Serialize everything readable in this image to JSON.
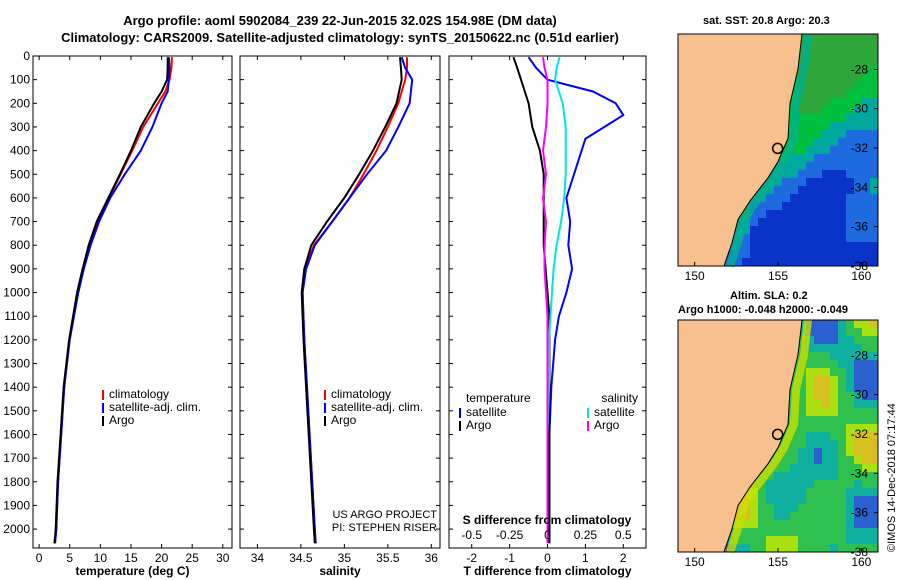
{
  "header": {
    "line1": "Argo profile: aoml 5902084_239 22-Jun-2015 32.02S 154.98E (DM data)",
    "line2": "Climatology: CARS2009. Satellite-adjusted climatology: synTS_20150622.nc (0.51d earlier)"
  },
  "credit": {
    "line1": "US ARGO PROJECT",
    "line2": "PI: STEPHEN RISER"
  },
  "stamp": "©IMOS 14-Dec-2018 07:17:44",
  "colors": {
    "clim": "#ff0000",
    "sat": "#0000ff",
    "argo": "#000000",
    "sat_s": "#00e5e5",
    "argo_s": "#ff00ff"
  },
  "chart_data": [
    {
      "type": "line",
      "id": "temperature",
      "xlabel": "temperature (deg C)",
      "ylabel": "",
      "xlim": [
        -1,
        31.5
      ],
      "ylim": [
        2080,
        0
      ],
      "xticks": [
        "0",
        "5",
        "10",
        "15",
        "20",
        "25",
        "30"
      ],
      "yticks": [
        "0",
        "100",
        "200",
        "300",
        "400",
        "500",
        "600",
        "700",
        "800",
        "900",
        "1000",
        "1100",
        "1200",
        "1300",
        "1400",
        "1500",
        "1600",
        "1700",
        "1800",
        "1900",
        "2000"
      ],
      "legend": [
        "climatology",
        "satellite-adj. clim.",
        "Argo"
      ],
      "series": [
        {
          "name": "climatology",
          "depth": [
            5,
            50,
            100,
            150,
            200,
            300,
            400,
            500,
            600,
            700,
            800,
            900,
            1000,
            1200,
            1400,
            1600,
            1800,
            2000,
            2060
          ],
          "values": [
            21.7,
            21.6,
            21.3,
            20.6,
            19.4,
            17.0,
            15.2,
            13.3,
            11.4,
            9.5,
            8.2,
            7.2,
            6.3,
            5.0,
            4.1,
            3.6,
            3.1,
            2.8,
            2.6
          ]
        },
        {
          "name": "satellite-adj. clim.",
          "depth": [
            5,
            50,
            100,
            150,
            200,
            300,
            400,
            500,
            600,
            700,
            800,
            900,
            1000,
            1200,
            1400,
            1600,
            1800,
            2000,
            2060
          ],
          "values": [
            21.2,
            21.3,
            21.2,
            21.0,
            20.0,
            18.5,
            16.6,
            14.0,
            11.6,
            9.8,
            8.4,
            7.3,
            6.4,
            5.0,
            4.1,
            3.6,
            3.1,
            2.8,
            2.6
          ]
        },
        {
          "name": "Argo",
          "depth": [
            5,
            50,
            100,
            150,
            200,
            300,
            400,
            500,
            600,
            700,
            800,
            900,
            1000,
            1200,
            1400,
            1600,
            1800,
            2000,
            2060
          ],
          "values": [
            21.0,
            21.0,
            20.9,
            20.0,
            18.8,
            16.6,
            15.0,
            13.2,
            11.3,
            9.4,
            8.1,
            7.1,
            6.2,
            4.9,
            4.0,
            3.5,
            3.0,
            2.7,
            2.5
          ]
        }
      ]
    },
    {
      "type": "line",
      "id": "salinity",
      "xlabel": "salinity",
      "xlim": [
        33.8,
        36.1
      ],
      "ylim": [
        2080,
        0
      ],
      "xticks": [
        "34",
        "34.5",
        "35",
        "35.5",
        "36"
      ],
      "legend": [
        "climatology",
        "satellite-adj. clim.",
        "Argo"
      ],
      "series": [
        {
          "name": "climatology",
          "depth": [
            5,
            50,
            100,
            200,
            300,
            400,
            500,
            600,
            700,
            800,
            900,
            1000,
            1200,
            1400,
            1600,
            1800,
            2000,
            2060
          ],
          "values": [
            35.72,
            35.72,
            35.7,
            35.62,
            35.5,
            35.37,
            35.22,
            35.06,
            34.86,
            34.65,
            34.55,
            34.52,
            34.54,
            34.57,
            34.6,
            34.63,
            34.66,
            34.67
          ]
        },
        {
          "name": "satellite-adj. clim.",
          "depth": [
            5,
            50,
            100,
            200,
            300,
            400,
            500,
            600,
            700,
            800,
            900,
            1000,
            1200,
            1400,
            1600,
            1800,
            2000,
            2060
          ],
          "values": [
            35.66,
            35.7,
            35.78,
            35.75,
            35.62,
            35.48,
            35.26,
            35.06,
            34.86,
            34.66,
            34.56,
            34.52,
            34.54,
            34.57,
            34.6,
            34.63,
            34.66,
            34.67
          ]
        },
        {
          "name": "Argo",
          "depth": [
            5,
            50,
            100,
            200,
            300,
            400,
            500,
            600,
            700,
            800,
            900,
            1000,
            1200,
            1400,
            1600,
            1800,
            2000,
            2060
          ],
          "values": [
            35.64,
            35.65,
            35.66,
            35.6,
            35.47,
            35.33,
            35.17,
            35.0,
            34.8,
            34.62,
            34.54,
            34.51,
            34.53,
            34.56,
            34.59,
            34.62,
            34.65,
            34.66
          ]
        }
      ]
    },
    {
      "type": "line",
      "id": "difference",
      "xlabel": "T difference from climatology",
      "top_label": "S difference from climatology",
      "xlim": [
        -2.6,
        2.6
      ],
      "ylim": [
        2080,
        0
      ],
      "xticks": [
        "-2",
        "-1",
        "0",
        "1",
        "2"
      ],
      "top_ticks": [
        "-0.5",
        "-0.25",
        "0",
        "0.25",
        "0.5"
      ],
      "legend_left_title": "temperature",
      "legend_right_title": "salinity",
      "legend_left": [
        "satellite",
        "Argo"
      ],
      "legend_right": [
        "satellite",
        "Argo"
      ],
      "series": [
        {
          "name": "temperature satellite",
          "depth": [
            5,
            50,
            100,
            150,
            200,
            250,
            300,
            350,
            400,
            500,
            600,
            700,
            800,
            900,
            1000,
            1100,
            1200,
            1400,
            1600,
            1800,
            2000,
            2060
          ],
          "values": [
            -0.5,
            -0.3,
            0.0,
            1.2,
            1.8,
            2.0,
            1.5,
            1.0,
            0.9,
            0.7,
            0.5,
            0.6,
            0.55,
            0.65,
            0.5,
            0.3,
            0.2,
            0.1,
            0.05,
            0.05,
            0.05,
            0.05
          ]
        },
        {
          "name": "temperature Argo",
          "depth": [
            5,
            50,
            100,
            150,
            200,
            300,
            400,
            500,
            600,
            700,
            800,
            900,
            1000,
            1100,
            1200,
            1400,
            1600,
            1800,
            2000,
            2060
          ],
          "values": [
            -0.9,
            -0.8,
            -0.7,
            -0.6,
            -0.5,
            -0.4,
            -0.2,
            -0.1,
            -0.1,
            -0.1,
            -0.1,
            -0.05,
            0.0,
            0.05,
            0.05,
            0.05,
            0.05,
            0.05,
            0.05,
            0.05
          ]
        },
        {
          "name": "salinity satellite",
          "depth": [
            5,
            50,
            100,
            200,
            300,
            400,
            500,
            600,
            700,
            800,
            900,
            1000,
            1100,
            1200,
            1400,
            1600,
            1800,
            2000,
            2060
          ],
          "values": [
            0.08,
            0.06,
            0.05,
            0.1,
            0.12,
            0.12,
            0.12,
            0.11,
            0.09,
            0.06,
            0.04,
            0.03,
            0.02,
            0.01,
            0.01,
            0.0,
            0.0,
            0.0,
            0.0
          ]
        },
        {
          "name": "salinity Argo",
          "depth": [
            5,
            50,
            100,
            200,
            300,
            400,
            500,
            600,
            700,
            800,
            900,
            1000,
            1100,
            1200,
            1400,
            1600,
            1800,
            2000,
            2060
          ],
          "values": [
            -0.03,
            -0.02,
            0.0,
            0.0,
            -0.01,
            -0.03,
            -0.01,
            -0.03,
            -0.01,
            -0.02,
            -0.02,
            -0.01,
            0.0,
            0.0,
            0.0,
            0.0,
            0.0,
            0.0,
            0.0
          ]
        }
      ]
    },
    {
      "type": "heatmap",
      "id": "sst-map",
      "title": "sat. SST: 20.8 Argo: 20.3",
      "xlim": [
        149,
        161
      ],
      "ylim": [
        -38,
        -26.2
      ],
      "xticks": [
        "150",
        "155",
        "160"
      ],
      "yticks": [
        "-28",
        "-30",
        "-32",
        "-34",
        "-36",
        "-38"
      ],
      "marker": {
        "lon": 154.98,
        "lat": -32.02
      }
    },
    {
      "type": "heatmap",
      "id": "sla-map",
      "title1": "Altim. SLA: 0.2",
      "title2": "Argo h1000: -0.048 h2000: -0.049",
      "xlim": [
        149,
        161
      ],
      "ylim": [
        -38,
        -26.2
      ],
      "xticks": [
        "150",
        "155",
        "160"
      ],
      "yticks": [
        "-28",
        "-30",
        "-32",
        "-34",
        "-36",
        "-38"
      ],
      "marker": {
        "lon": 154.98,
        "lat": -32.02
      }
    }
  ]
}
